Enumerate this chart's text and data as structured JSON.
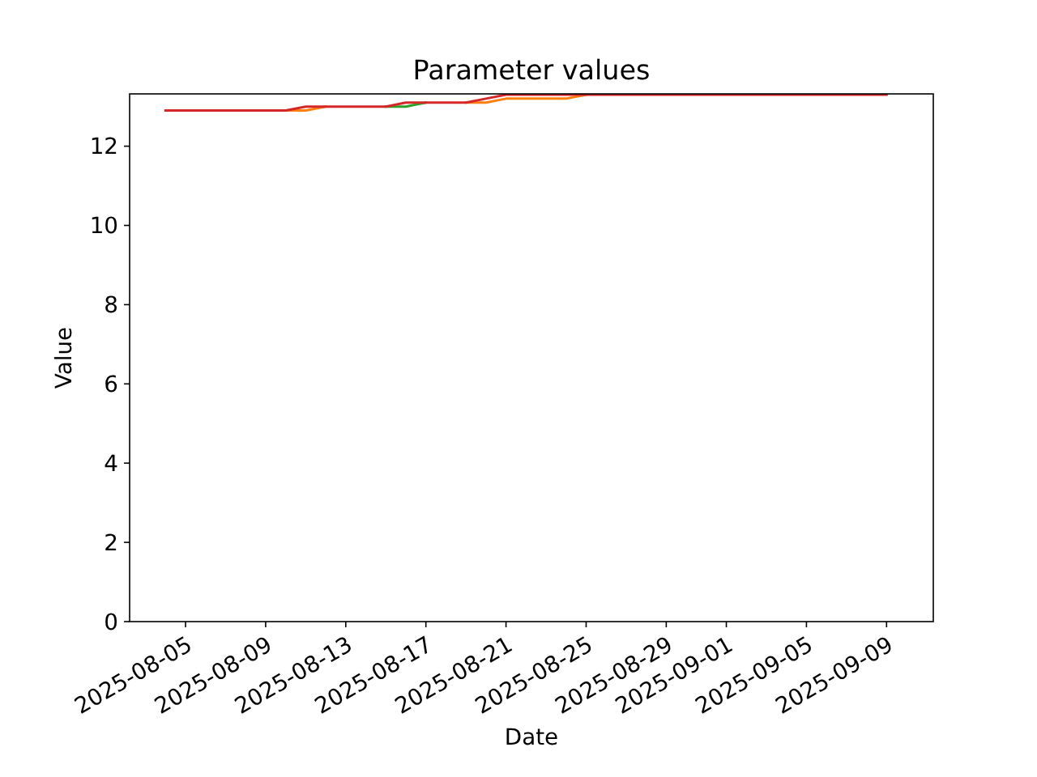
{
  "chart_data": {
    "type": "line",
    "title": "Parameter values",
    "xlabel": "Date",
    "ylabel": "Value",
    "x": [
      "2025-08-04",
      "2025-08-05",
      "2025-08-06",
      "2025-08-07",
      "2025-08-08",
      "2025-08-09",
      "2025-08-10",
      "2025-08-11",
      "2025-08-12",
      "2025-08-13",
      "2025-08-14",
      "2025-08-15",
      "2025-08-16",
      "2025-08-17",
      "2025-08-18",
      "2025-08-19",
      "2025-08-20",
      "2025-08-21",
      "2025-08-22",
      "2025-08-23",
      "2025-08-24",
      "2025-08-25",
      "2025-08-26",
      "2025-08-27",
      "2025-08-28",
      "2025-08-29",
      "2025-08-30",
      "2025-08-31",
      "2025-09-01",
      "2025-09-02",
      "2025-09-03",
      "2025-09-04",
      "2025-09-05",
      "2025-09-06",
      "2025-09-07",
      "2025-09-08",
      "2025-09-09"
    ],
    "series": [
      {
        "color": "#ff7f0e",
        "values": [
          null,
          null,
          null,
          null,
          null,
          null,
          12.9,
          12.9,
          13.0,
          null,
          null,
          null,
          null,
          null,
          null,
          13.1,
          13.1,
          13.2,
          13.2,
          13.2,
          13.2,
          13.3,
          null,
          null,
          null,
          null,
          null,
          null,
          null,
          null,
          null,
          null,
          null,
          null,
          null,
          null,
          null
        ]
      },
      {
        "color": "#2ca02c",
        "values": [
          null,
          null,
          null,
          null,
          null,
          null,
          null,
          null,
          null,
          null,
          null,
          13.0,
          13.0,
          13.1,
          null,
          null,
          null,
          null,
          null,
          null,
          null,
          null,
          null,
          null,
          null,
          null,
          null,
          null,
          null,
          null,
          null,
          null,
          null,
          null,
          null,
          null,
          null
        ]
      },
      {
        "color": "#d62728",
        "values": [
          12.9,
          12.9,
          12.9,
          12.9,
          12.9,
          12.9,
          12.9,
          13.0,
          13.0,
          13.0,
          13.0,
          13.0,
          13.1,
          13.1,
          13.1,
          13.1,
          13.2,
          13.3,
          13.3,
          13.3,
          13.3,
          13.3,
          13.3,
          13.3,
          13.3,
          13.3,
          13.3,
          13.3,
          13.3,
          13.3,
          13.3,
          13.3,
          13.3,
          13.3,
          13.3,
          13.3,
          13.3
        ]
      }
    ],
    "xlim": [
      "2025-08-02T05:00",
      "2025-09-11T08:00"
    ],
    "xticks": [
      "2025-08-05",
      "2025-08-09",
      "2025-08-13",
      "2025-08-17",
      "2025-08-21",
      "2025-08-25",
      "2025-08-29",
      "2025-09-01",
      "2025-09-05",
      "2025-09-09"
    ],
    "ylim": [
      0,
      13.32
    ],
    "yticks": [
      0,
      2,
      4,
      6,
      8,
      10,
      12
    ],
    "line_style": "solid"
  }
}
